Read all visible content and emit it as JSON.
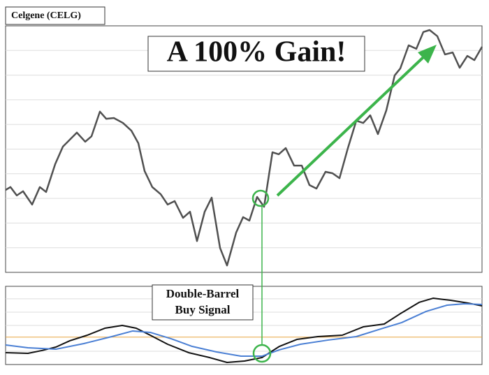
{
  "chart_data": [
    {
      "type": "line",
      "title": "Celgene (CELG)",
      "annotation": "A 100% Gain!",
      "x": [
        8,
        15,
        24,
        33,
        46,
        57,
        66,
        79,
        90,
        110,
        122,
        131,
        143,
        152,
        163,
        176,
        188,
        198,
        207,
        218,
        230,
        240,
        250,
        262,
        272,
        282,
        293,
        303,
        315,
        325,
        338,
        348,
        357,
        368,
        378,
        390,
        399,
        409,
        421,
        432,
        443,
        453,
        466,
        476,
        486,
        498,
        510,
        520,
        530,
        541,
        553,
        565,
        573,
        585,
        596,
        606,
        615,
        626,
        637,
        648,
        658,
        669,
        679,
        690
      ],
      "series": [
        {
          "color": "#505050",
          "values": [
            33.4,
            34.6,
            31.2,
            32.9,
            27.5,
            34.6,
            32.6,
            43.9,
            51.0,
            56.7,
            53.0,
            55.2,
            65.2,
            62.3,
            62.6,
            60.6,
            57.5,
            52.4,
            41.1,
            34.6,
            31.7,
            27.5,
            28.9,
            22.1,
            24.6,
            12.7,
            24.6,
            30.3,
            9.9,
            2.8,
            16.1,
            22.4,
            21.0,
            30.6,
            26.6,
            48.7,
            47.9,
            50.4,
            43.3,
            43.3,
            35.4,
            34.0,
            40.8,
            40.2,
            38.2,
            50.4,
            61.5,
            60.6,
            63.7,
            56.1,
            65.7,
            79.9,
            82.7,
            92.1,
            90.7,
            97.5,
            98.3,
            95.8,
            88.4,
            89.2,
            83.0,
            87.8,
            86.1,
            91.5
          ]
        }
      ],
      "xlim": [
        8,
        690
      ],
      "ylim": [
        0,
        100
      ],
      "grid_lines": [
        10,
        20,
        30,
        40,
        50,
        60,
        70,
        80,
        90
      ]
    },
    {
      "type": "line",
      "annotation": [
        "Double-Barrel",
        "Buy Signal"
      ],
      "series": [
        {
          "color": "#111111",
          "x": [
            8,
            40,
            60,
            80,
            100,
            125,
            150,
            175,
            195,
            215,
            240,
            270,
            300,
            325,
            350,
            375,
            400,
            425,
            455,
            490,
            520,
            550,
            575,
            600,
            620,
            645,
            670,
            690
          ],
          "values": [
            15.2,
            14.3,
            17.9,
            22.3,
            30.4,
            37.5,
            46.4,
            50.0,
            46.4,
            37.5,
            25.9,
            15.2,
            8.9,
            2.7,
            4.5,
            8.9,
            23.2,
            32.1,
            35.7,
            37.5,
            48.2,
            51.8,
            66.1,
            79.5,
            84.8,
            82.1,
            78.6,
            75.0
          ]
        },
        {
          "color": "#4a7fd4",
          "x": [
            8,
            40,
            80,
            120,
            160,
            190,
            215,
            245,
            275,
            310,
            345,
            375,
            400,
            430,
            470,
            510,
            545,
            575,
            610,
            640,
            665,
            690
          ],
          "values": [
            25.0,
            21.4,
            19.6,
            26.8,
            35.7,
            42.9,
            41.1,
            33.0,
            23.2,
            16.1,
            10.7,
            10.7,
            18.8,
            25.9,
            31.3,
            35.7,
            45.5,
            53.6,
            67.9,
            75.9,
            77.7,
            76.8
          ]
        }
      ],
      "xlim": [
        8,
        690
      ],
      "ylim": [
        0,
        100
      ],
      "grid_lines": [
        17,
        50,
        67,
        84
      ],
      "reference_line": 35,
      "reference_color": "#e8a33a"
    }
  ]
}
